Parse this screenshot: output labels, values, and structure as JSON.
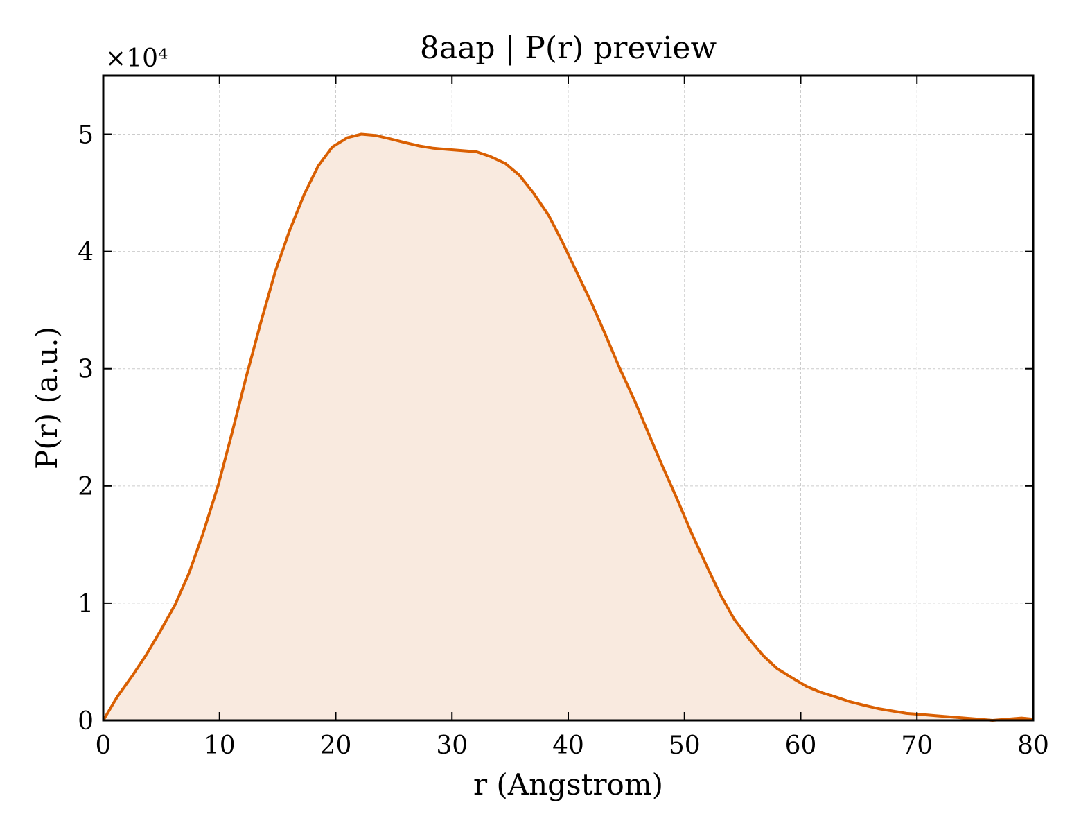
{
  "chart_data": {
    "type": "area",
    "title": "8aap | P(r) preview",
    "xlabel": "r (Angstrom)",
    "ylabel": "P(r) (a.u.)",
    "y_scale_label": "×10⁴",
    "xlim": [
      0,
      80
    ],
    "ylim": [
      0,
      5.5
    ],
    "x_ticks": [
      0,
      10,
      20,
      30,
      40,
      50,
      60,
      70,
      80
    ],
    "x_tick_labels": [
      "0",
      "10",
      "20",
      "30",
      "40",
      "50",
      "60",
      "70",
      "80"
    ],
    "y_ticks": [
      0,
      1,
      2,
      3,
      4,
      5
    ],
    "y_tick_labels": [
      "0",
      "1",
      "2",
      "3",
      "4",
      "5"
    ],
    "grid": true,
    "line_color": "#d95f02",
    "fill_color": "#f9eadf",
    "series": [
      {
        "x": [
          0,
          1.2,
          2.5,
          3.7,
          4.9,
          6.2,
          7.4,
          8.6,
          9.9,
          11.1,
          12.3,
          13.6,
          14.8,
          16.0,
          17.3,
          18.5,
          19.7,
          21.0,
          22.2,
          23.4,
          24.7,
          25.9,
          27.2,
          28.4,
          29.6,
          30.9,
          32.1,
          33.3,
          34.6,
          35.8,
          37.0,
          38.3,
          39.5,
          40.7,
          42.0,
          43.2,
          44.4,
          45.7,
          46.9,
          48.1,
          49.4,
          50.6,
          51.9,
          53.1,
          54.3,
          55.6,
          56.8,
          58.0,
          59.3,
          60.5,
          61.7,
          63.0,
          64.2,
          65.4,
          66.7,
          67.9,
          69.1,
          70.4,
          71.6,
          72.8,
          74.1,
          75.3,
          76.5,
          77.8,
          79.0,
          80.0
        ],
        "y": [
          0.0,
          0.2,
          0.38,
          0.56,
          0.76,
          0.99,
          1.26,
          1.6,
          2.01,
          2.46,
          2.93,
          3.41,
          3.83,
          4.17,
          4.49,
          4.73,
          4.89,
          4.97,
          5.0,
          4.99,
          4.96,
          4.93,
          4.9,
          4.88,
          4.87,
          4.86,
          4.85,
          4.81,
          4.75,
          4.65,
          4.5,
          4.31,
          4.08,
          3.83,
          3.56,
          3.29,
          3.01,
          2.73,
          2.45,
          2.17,
          1.88,
          1.6,
          1.32,
          1.07,
          0.86,
          0.69,
          0.55,
          0.44,
          0.36,
          0.29,
          0.24,
          0.2,
          0.16,
          0.13,
          0.1,
          0.08,
          0.06,
          0.05,
          0.04,
          0.03,
          0.02,
          0.01,
          0.0,
          0.01,
          0.02,
          0.01
        ]
      }
    ]
  }
}
